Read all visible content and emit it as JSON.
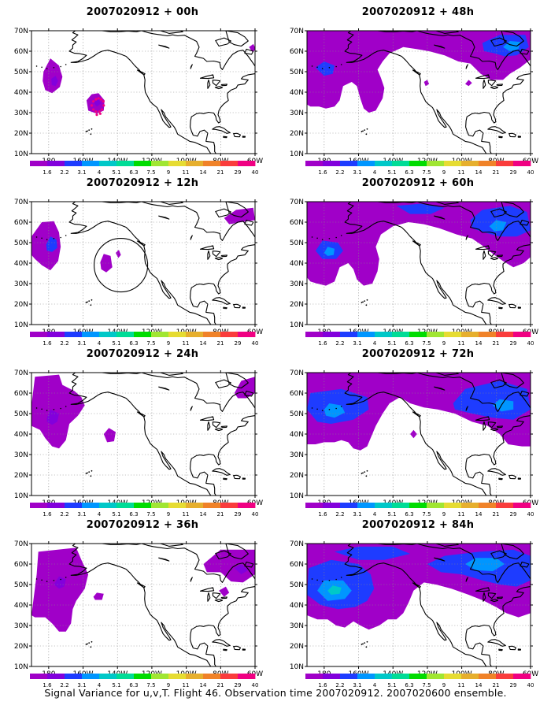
{
  "figure": {
    "caption": "Signal Variance for u,v,T. Flight 46. Observation time 2007020912. 2007020600 ensemble."
  },
  "map": {
    "lon_range": [
      170,
      300
    ],
    "lat_range": [
      10,
      70
    ],
    "lon_ticks": [
      180,
      200,
      220,
      240,
      260,
      280,
      300
    ],
    "lon_tick_labels": [
      "180",
      "160W",
      "140W",
      "120W",
      "100W",
      "80W",
      "60W"
    ],
    "lat_ticks": [
      10,
      20,
      30,
      40,
      50,
      60,
      70
    ],
    "lat_tick_labels": [
      "10N",
      "20N",
      "30N",
      "40N",
      "50N",
      "60N",
      "70N"
    ],
    "grid": true
  },
  "colorbar": {
    "levels": [
      "1.6",
      "2.2",
      "3.1",
      "4",
      "5.1",
      "6.3",
      "7.5",
      "9",
      "11",
      "14",
      "21",
      "29",
      "40"
    ],
    "colors": [
      "#a000c8",
      "#8200dc",
      "#1e3cff",
      "#0096ff",
      "#00c8c8",
      "#00dc96",
      "#00dc00",
      "#a0e632",
      "#e6dc32",
      "#e6af2d",
      "#f08228",
      "#fa3c3c",
      "#f00082"
    ]
  },
  "panels": [
    {
      "title": "2007020912 + 00h",
      "lead": "00h"
    },
    {
      "title": "2007020912 + 48h",
      "lead": "48h"
    },
    {
      "title": "2007020912 + 12h",
      "lead": "12h"
    },
    {
      "title": "2007020912 + 60h",
      "lead": "60h"
    },
    {
      "title": "2007020912 + 24h",
      "lead": "24h"
    },
    {
      "title": "2007020912 + 72h",
      "lead": "72h"
    },
    {
      "title": "2007020912 + 36h",
      "lead": "36h"
    },
    {
      "title": "2007020912 + 84h",
      "lead": "84h"
    }
  ]
}
